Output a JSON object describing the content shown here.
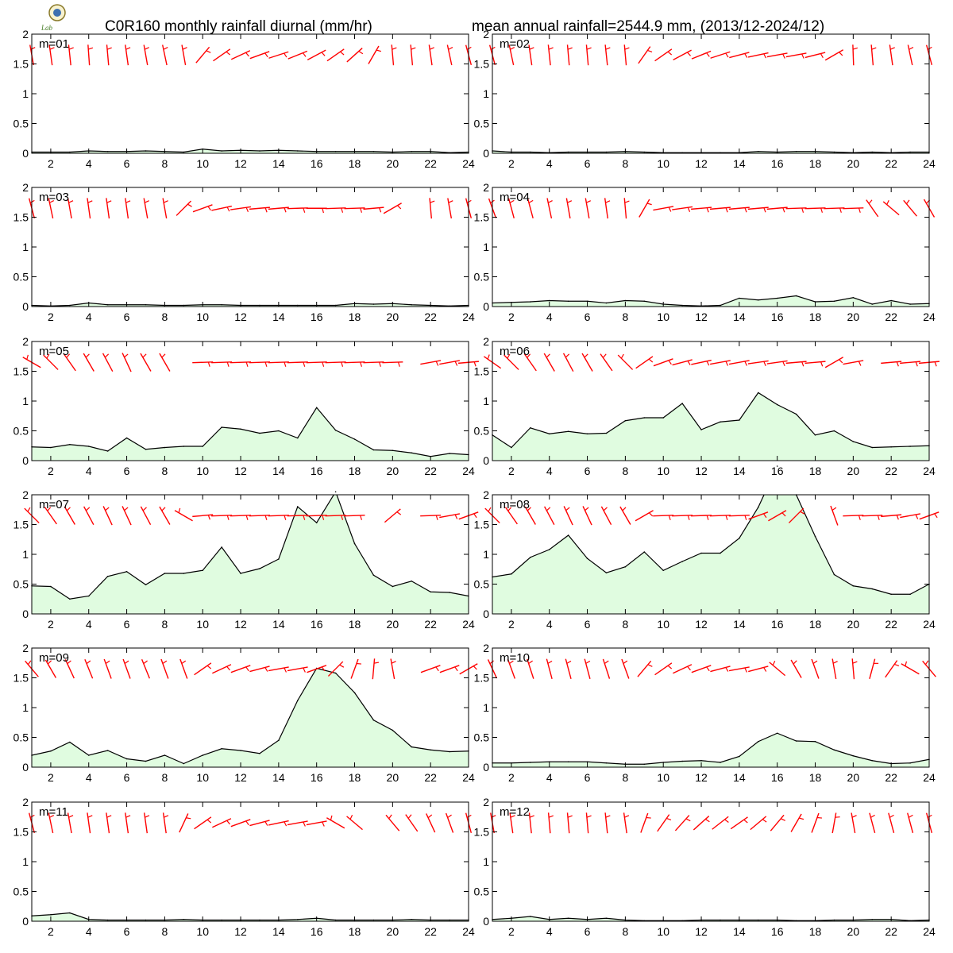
{
  "header": {
    "title_left": "C0R160 monthly rainfall diurnal (mm/hr)",
    "title_right": "mean annual rainfall=2544.9 mm, (2013/12-2024/12)",
    "logo_text": "Lab"
  },
  "colors": {
    "fill": "#e0fce0",
    "line": "#000000",
    "barb": "#ff0000",
    "frame": "#000000"
  },
  "chart_data": {
    "type": "area",
    "x": [
      1,
      2,
      3,
      4,
      5,
      6,
      7,
      8,
      9,
      10,
      11,
      12,
      13,
      14,
      15,
      16,
      17,
      18,
      19,
      20,
      21,
      22,
      23,
      24
    ],
    "x_ticks": [
      "2",
      "4",
      "6",
      "8",
      "10",
      "12",
      "14",
      "16",
      "18",
      "20",
      "22",
      "24"
    ],
    "y_ticks": [
      "0",
      "0.5",
      "1",
      "1.5",
      "2"
    ],
    "xlim": [
      1,
      24
    ],
    "ylim": [
      0,
      2
    ],
    "panels": [
      {
        "label": "m=01",
        "values": [
          0.02,
          0.02,
          0.02,
          0.04,
          0.03,
          0.03,
          0.04,
          0.03,
          0.02,
          0.07,
          0.04,
          0.05,
          0.04,
          0.05,
          0.04,
          0.03,
          0.03,
          0.03,
          0.03,
          0.02,
          0.03,
          0.03,
          0.01,
          0.02
        ],
        "wind_dir": [
          -10,
          -8,
          -6,
          -4,
          -5,
          -8,
          -10,
          -12,
          -10,
          40,
          55,
          65,
          70,
          72,
          68,
          62,
          55,
          48,
          30,
          -5,
          -5,
          -8,
          -12,
          -15
        ]
      },
      {
        "label": "m=02",
        "values": [
          0.04,
          0.02,
          0.02,
          0.01,
          0.02,
          0.02,
          0.02,
          0.03,
          0.02,
          0.01,
          0.01,
          0.01,
          0.01,
          0.01,
          0.03,
          0.02,
          0.03,
          0.03,
          0.02,
          0.01,
          0.02,
          0.01,
          0.02,
          0.02
        ],
        "wind_dir": [
          -15,
          -12,
          -8,
          -6,
          -5,
          -5,
          -6,
          -5,
          35,
          55,
          62,
          68,
          72,
          75,
          78,
          80,
          80,
          76,
          60,
          -2,
          -5,
          -8,
          -12,
          -15
        ]
      },
      {
        "label": "m=03",
        "values": [
          0.02,
          0.01,
          0.02,
          0.06,
          0.03,
          0.03,
          0.03,
          0.02,
          0.02,
          0.03,
          0.03,
          0.02,
          0.02,
          0.02,
          0.02,
          0.02,
          0.02,
          0.05,
          0.04,
          0.05,
          0.03,
          0.02,
          0.01,
          0.02
        ],
        "wind_dir": [
          -15,
          -12,
          -10,
          -8,
          -8,
          -8,
          -10,
          -10,
          45,
          70,
          78,
          82,
          85,
          85,
          88,
          90,
          88,
          88,
          85,
          60,
          null,
          -5,
          -10,
          -15
        ]
      },
      {
        "label": "m=04",
        "values": [
          0.06,
          0.07,
          0.08,
          0.1,
          0.09,
          0.09,
          0.06,
          0.1,
          0.09,
          0.04,
          0.02,
          0.01,
          0.02,
          0.14,
          0.11,
          0.14,
          0.18,
          0.08,
          0.09,
          0.15,
          0.04,
          0.1,
          0.04,
          0.05
        ],
        "wind_dir": [
          -20,
          -15,
          -15,
          -12,
          -10,
          -10,
          -8,
          -5,
          30,
          80,
          82,
          85,
          85,
          85,
          85,
          85,
          88,
          88,
          88,
          88,
          -35,
          -50,
          -40,
          -30
        ]
      },
      {
        "label": "m=05",
        "values": [
          0.23,
          0.22,
          0.27,
          0.24,
          0.16,
          0.38,
          0.19,
          0.22,
          0.24,
          0.24,
          0.56,
          0.53,
          0.46,
          0.5,
          0.38,
          0.89,
          0.51,
          0.36,
          0.18,
          0.17,
          0.13,
          0.07,
          0.12,
          0.1
        ],
        "wind_dir": [
          -60,
          -45,
          -35,
          -30,
          -28,
          -25,
          -30,
          -30,
          null,
          88,
          88,
          88,
          88,
          88,
          88,
          88,
          88,
          88,
          88,
          88,
          null,
          80,
          80,
          85
        ]
      },
      {
        "label": "m=06",
        "values": [
          0.43,
          0.22,
          0.55,
          0.45,
          0.49,
          0.45,
          0.46,
          0.67,
          0.72,
          0.72,
          0.96,
          0.52,
          0.65,
          0.68,
          1.14,
          0.94,
          0.78,
          0.43,
          0.5,
          0.32,
          0.22,
          0.23,
          0.24,
          0.25
        ],
        "wind_dir": [
          -55,
          -45,
          -35,
          -30,
          -28,
          -30,
          -35,
          -45,
          55,
          70,
          75,
          78,
          80,
          80,
          82,
          82,
          85,
          85,
          60,
          80,
          null,
          85,
          85,
          85
        ]
      },
      {
        "label": "m=07",
        "values": [
          0.47,
          0.46,
          0.25,
          0.3,
          0.63,
          0.71,
          0.49,
          0.68,
          0.68,
          0.73,
          1.12,
          0.68,
          0.76,
          0.92,
          1.8,
          1.53,
          2.05,
          1.18,
          0.65,
          0.46,
          0.55,
          0.37,
          0.36,
          0.3
        ],
        "wind_dir": [
          -45,
          -35,
          -30,
          -28,
          -25,
          -25,
          -28,
          -30,
          -60,
          85,
          88,
          88,
          88,
          88,
          88,
          88,
          88,
          88,
          null,
          50,
          null,
          88,
          80,
          70
        ]
      },
      {
        "label": "m=08",
        "values": [
          0.62,
          0.67,
          0.95,
          1.08,
          1.32,
          0.93,
          0.69,
          0.79,
          1.04,
          0.73,
          0.88,
          1.02,
          1.02,
          1.27,
          1.79,
          2.48,
          2.0,
          1.3,
          0.66,
          0.47,
          0.42,
          0.33,
          0.33,
          0.5
        ],
        "wind_dir": [
          -45,
          -35,
          -30,
          -28,
          -25,
          -25,
          -28,
          -30,
          60,
          88,
          88,
          88,
          88,
          88,
          70,
          60,
          45,
          null,
          -20,
          88,
          88,
          85,
          80,
          70
        ]
      },
      {
        "label": "m=09",
        "values": [
          0.2,
          0.27,
          0.42,
          0.2,
          0.28,
          0.14,
          0.1,
          0.2,
          0.06,
          0.2,
          0.31,
          0.28,
          0.23,
          0.45,
          1.12,
          1.66,
          1.58,
          1.25,
          0.79,
          0.62,
          0.34,
          0.29,
          0.26,
          0.27
        ],
        "wind_dir": [
          -40,
          -30,
          -25,
          -22,
          -20,
          -20,
          -22,
          -20,
          -20,
          55,
          65,
          70,
          75,
          80,
          80,
          70,
          45,
          20,
          5,
          -10,
          null,
          70,
          70,
          60
        ]
      },
      {
        "label": "m=10",
        "values": [
          0.07,
          0.07,
          0.08,
          0.09,
          0.09,
          0.09,
          0.07,
          0.05,
          0.05,
          0.08,
          0.1,
          0.11,
          0.08,
          0.18,
          0.43,
          0.57,
          0.44,
          0.43,
          0.29,
          0.19,
          0.11,
          0.06,
          0.07,
          0.13
        ],
        "wind_dir": [
          -25,
          -20,
          -18,
          -15,
          -15,
          -15,
          -18,
          -20,
          40,
          55,
          65,
          70,
          75,
          80,
          75,
          -50,
          -30,
          -20,
          -10,
          -5,
          15,
          35,
          -60,
          -40
        ]
      },
      {
        "label": "m=11",
        "values": [
          0.09,
          0.11,
          0.14,
          0.03,
          0.02,
          0.02,
          0.02,
          0.02,
          0.03,
          0.02,
          0.02,
          0.02,
          0.02,
          0.02,
          0.03,
          0.05,
          0.02,
          0.02,
          0.02,
          0.02,
          0.03,
          0.02,
          0.02,
          0.02
        ],
        "wind_dir": [
          -15,
          -12,
          -10,
          -8,
          -8,
          -8,
          -8,
          -8,
          25,
          55,
          65,
          70,
          75,
          78,
          80,
          80,
          -60,
          -50,
          null,
          -40,
          -35,
          -25,
          -20,
          -15
        ]
      },
      {
        "label": "m=12",
        "values": [
          0.03,
          0.05,
          0.08,
          0.03,
          0.05,
          0.03,
          0.05,
          0.02,
          0.01,
          0.01,
          0.01,
          0.02,
          0.02,
          0.02,
          0.02,
          0.02,
          0.01,
          0.01,
          0.02,
          0.02,
          0.03,
          0.03,
          0.01,
          0.02
        ],
        "wind_dir": [
          -10,
          -8,
          -6,
          -5,
          -5,
          -5,
          -6,
          -8,
          20,
          35,
          42,
          48,
          52,
          55,
          50,
          40,
          30,
          20,
          10,
          -10,
          -15,
          -15,
          -15,
          -15
        ]
      }
    ]
  }
}
